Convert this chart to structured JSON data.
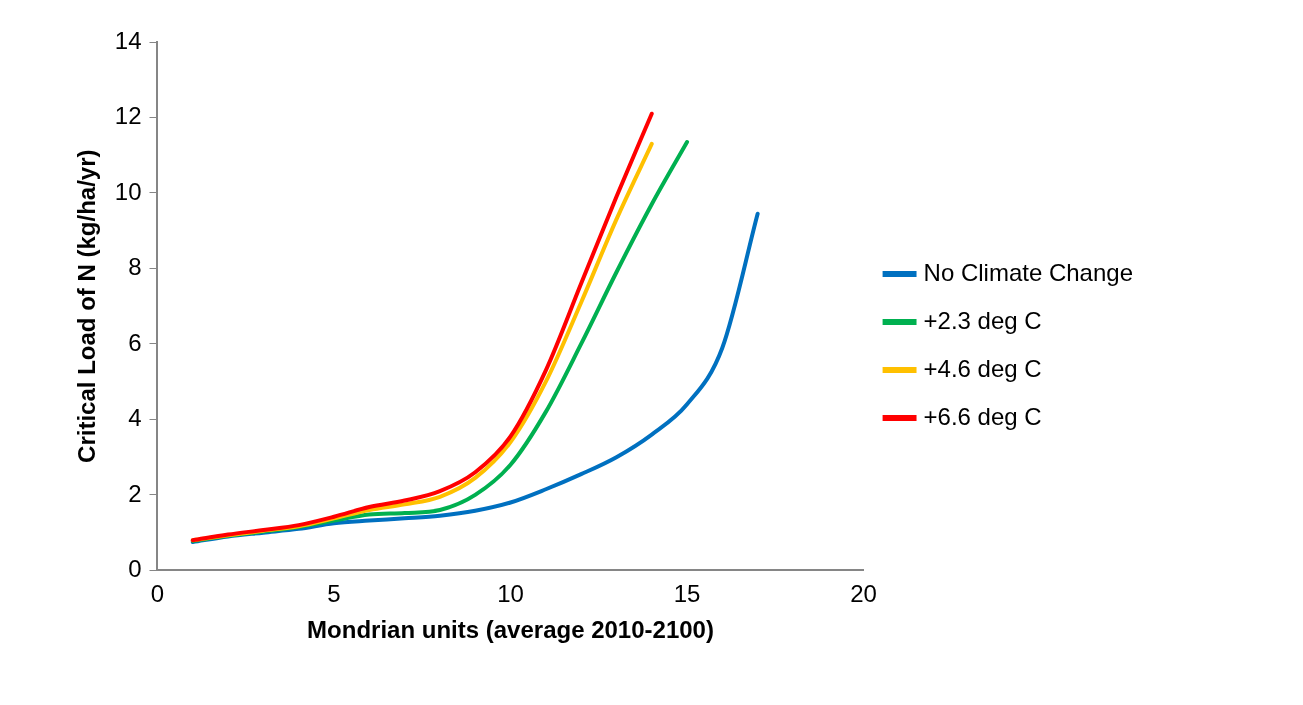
{
  "chart_data": {
    "type": "line",
    "xlabel": "Mondrian units (average 2010-2100)",
    "ylabel": "Critical Load of N (kg/ha/yr)",
    "xlim": [
      0,
      20
    ],
    "xticks": [
      0,
      5,
      10,
      15,
      20
    ],
    "ylim": [
      0,
      14
    ],
    "yticks": [
      0,
      2,
      4,
      6,
      8,
      10,
      12,
      14
    ],
    "grid": false,
    "legend": "right",
    "marker": "none",
    "line_style": "solid",
    "series": [
      {
        "name": "No Climate Change",
        "color": "#0070c0",
        "x": [
          1,
          2,
          3,
          4,
          5,
          6,
          7,
          8,
          9,
          10,
          11,
          12,
          13,
          14,
          15,
          16,
          17
        ],
        "values": [
          0.75,
          0.9,
          1.0,
          1.1,
          1.25,
          1.32,
          1.38,
          1.45,
          1.58,
          1.8,
          2.15,
          2.55,
          3.0,
          3.6,
          4.4,
          5.9,
          9.45
        ]
      },
      {
        "name": "+2.3 deg C",
        "color": "#00b050",
        "x": [
          1,
          2,
          3,
          4,
          5,
          6,
          7,
          8,
          9,
          10,
          11,
          12,
          13,
          14,
          15
        ],
        "values": [
          0.78,
          0.92,
          1.03,
          1.15,
          1.32,
          1.48,
          1.52,
          1.6,
          2.0,
          2.8,
          4.2,
          6.0,
          7.9,
          9.7,
          11.35
        ]
      },
      {
        "name": "+4.6 deg C",
        "color": "#ffc000",
        "x": [
          1,
          2,
          3,
          4,
          5,
          6,
          7,
          8,
          9,
          10,
          11,
          12,
          13,
          14
        ],
        "values": [
          0.8,
          0.93,
          1.05,
          1.17,
          1.38,
          1.6,
          1.75,
          1.95,
          2.45,
          3.4,
          5.0,
          7.1,
          9.3,
          11.3
        ]
      },
      {
        "name": "+6.6 deg C",
        "color": "#ff0000",
        "x": [
          1,
          2,
          3,
          4,
          5,
          6,
          7,
          8,
          9,
          10,
          11,
          12,
          13,
          14
        ],
        "values": [
          0.8,
          0.95,
          1.07,
          1.2,
          1.42,
          1.68,
          1.85,
          2.1,
          2.6,
          3.55,
          5.3,
          7.6,
          9.9,
          12.1
        ]
      }
    ]
  }
}
